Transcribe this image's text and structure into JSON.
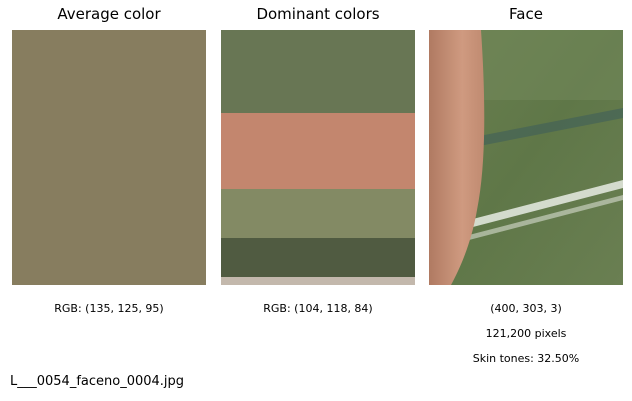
{
  "panels": {
    "average": {
      "title": "Average color",
      "color": "#877d5f",
      "caption": "RGB: (135, 125, 95)"
    },
    "dominant": {
      "title": "Dominant colors",
      "caption": "RGB: (104, 118, 84)",
      "bands": [
        {
          "color": "#687654",
          "fraction": 0.325
        },
        {
          "color": "#c3866e",
          "fraction": 0.298
        },
        {
          "color": "#838a64",
          "fraction": 0.192
        },
        {
          "color": "#505b41",
          "fraction": 0.153
        },
        {
          "color": "#c3b8ac",
          "fraction": 0.032
        }
      ]
    },
    "face": {
      "title": "Face",
      "shape": "(400, 303, 3)",
      "pixels": "121,200 pixels",
      "skin": "Skin tones: 32.50%"
    }
  },
  "filename": "L___0054_faceno_0004.jpg"
}
